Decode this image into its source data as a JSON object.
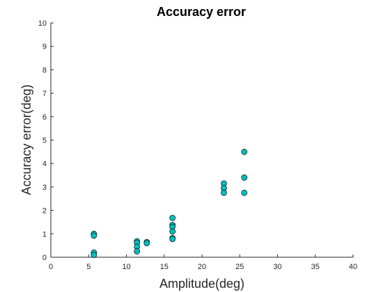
{
  "chart_data": {
    "type": "scatter",
    "title": "Accuracy error",
    "xlabel": "Amplitude(deg)",
    "ylabel": "Accuracy error(deg)",
    "xlim": [
      0,
      40
    ],
    "ylim": [
      0,
      10
    ],
    "xticks": [
      "0",
      "5",
      "10",
      "15",
      "20",
      "25",
      "30",
      "35",
      "40"
    ],
    "yticks": [
      "0",
      "1",
      "2",
      "3",
      "4",
      "5",
      "6",
      "7",
      "8",
      "9",
      "10"
    ],
    "grid": false,
    "marker_color": "#00bfbf",
    "marker_edge_color": "#1a1a1a",
    "points": [
      {
        "x": 5.7,
        "y": 1.0
      },
      {
        "x": 5.7,
        "y": 0.92
      },
      {
        "x": 5.7,
        "y": 0.2
      },
      {
        "x": 5.7,
        "y": 0.1
      },
      {
        "x": 11.4,
        "y": 0.68
      },
      {
        "x": 11.4,
        "y": 0.62
      },
      {
        "x": 11.4,
        "y": 0.45
      },
      {
        "x": 11.4,
        "y": 0.25
      },
      {
        "x": 12.7,
        "y": 0.65
      },
      {
        "x": 12.7,
        "y": 0.6
      },
      {
        "x": 16.1,
        "y": 1.68
      },
      {
        "x": 16.1,
        "y": 1.38
      },
      {
        "x": 16.1,
        "y": 1.3
      },
      {
        "x": 16.1,
        "y": 1.1
      },
      {
        "x": 16.1,
        "y": 0.82
      },
      {
        "x": 16.1,
        "y": 0.78
      },
      {
        "x": 22.9,
        "y": 3.15
      },
      {
        "x": 22.9,
        "y": 2.95
      },
      {
        "x": 22.9,
        "y": 2.75
      },
      {
        "x": 25.6,
        "y": 4.5
      },
      {
        "x": 25.6,
        "y": 3.4
      },
      {
        "x": 25.6,
        "y": 2.75
      }
    ]
  }
}
